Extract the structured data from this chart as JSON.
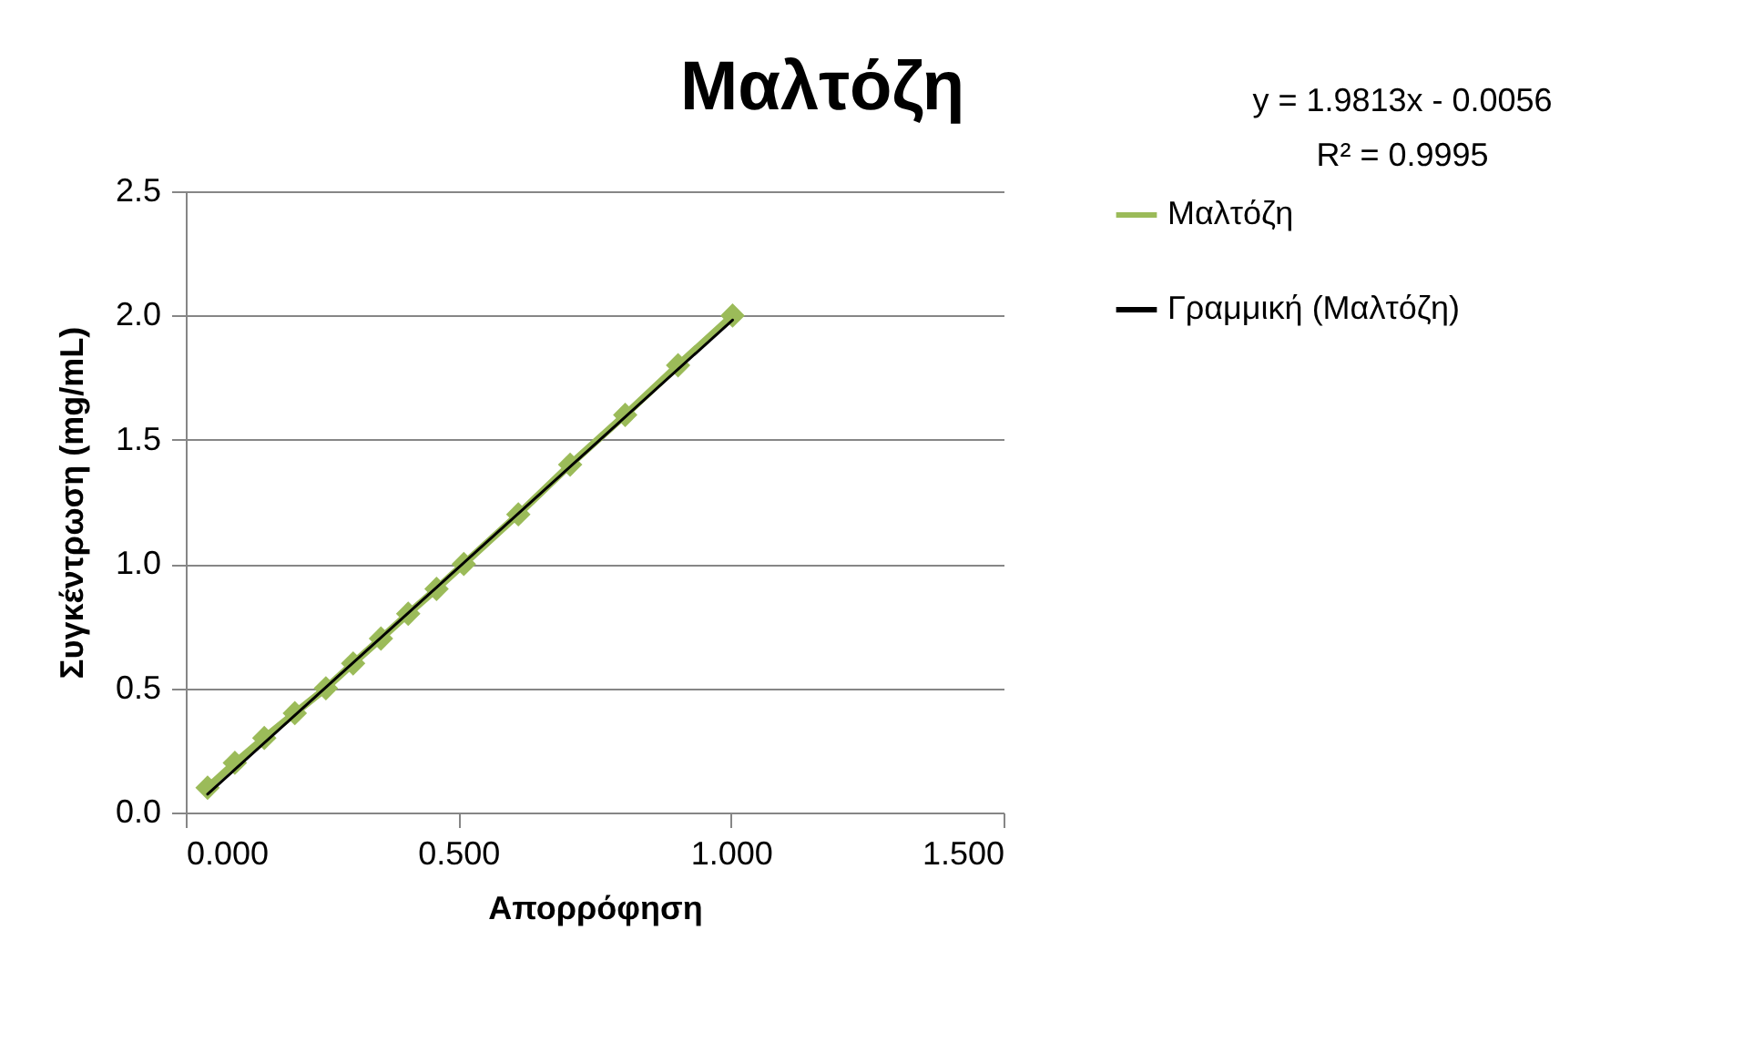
{
  "chart_data": {
    "type": "line",
    "title": "Μαλτόζη",
    "xlabel": "Απορρόφηση",
    "ylabel": "Συγκέντρωση (mg/mL)",
    "annotations": [
      "y = 1.9813x - 0.0056",
      "R² = 0.9995"
    ],
    "series": [
      {
        "name": "Μαλτόζη",
        "color": "#9bbb59",
        "marker": "diamond",
        "x": [
          0.04,
          0.09,
          0.144,
          0.2,
          0.257,
          0.307,
          0.358,
          0.408,
          0.46,
          0.51,
          0.61,
          0.705,
          0.806,
          0.903,
          1.003
        ],
        "values": [
          0.1,
          0.2,
          0.3,
          0.4,
          0.5,
          0.6,
          0.7,
          0.8,
          0.9,
          1.0,
          1.2,
          1.4,
          1.6,
          1.8,
          2.0
        ]
      },
      {
        "name": "Γραμμική (Μαλτόζη)",
        "color": "#000000",
        "marker": "none",
        "x": [
          0.04,
          1.003
        ],
        "values": [
          0.074,
          1.982
        ]
      }
    ],
    "xlim": [
      0,
      1.5
    ],
    "xticks": [
      {
        "value": 0,
        "label": "0.000"
      },
      {
        "value": 0.5,
        "label": "0.500"
      },
      {
        "value": 1,
        "label": "1.000"
      },
      {
        "value": 1.5,
        "label": "1.500"
      }
    ],
    "ylim": [
      0,
      2.5
    ],
    "yticks": [
      {
        "value": 0,
        "label": "0.0"
      },
      {
        "value": 0.5,
        "label": "0.5"
      },
      {
        "value": 1,
        "label": "1.0"
      },
      {
        "value": 1.5,
        "label": "1.5"
      },
      {
        "value": 2,
        "label": "2.0"
      },
      {
        "value": 2.5,
        "label": "2.5"
      }
    ],
    "grid": "y",
    "legend": "right"
  }
}
